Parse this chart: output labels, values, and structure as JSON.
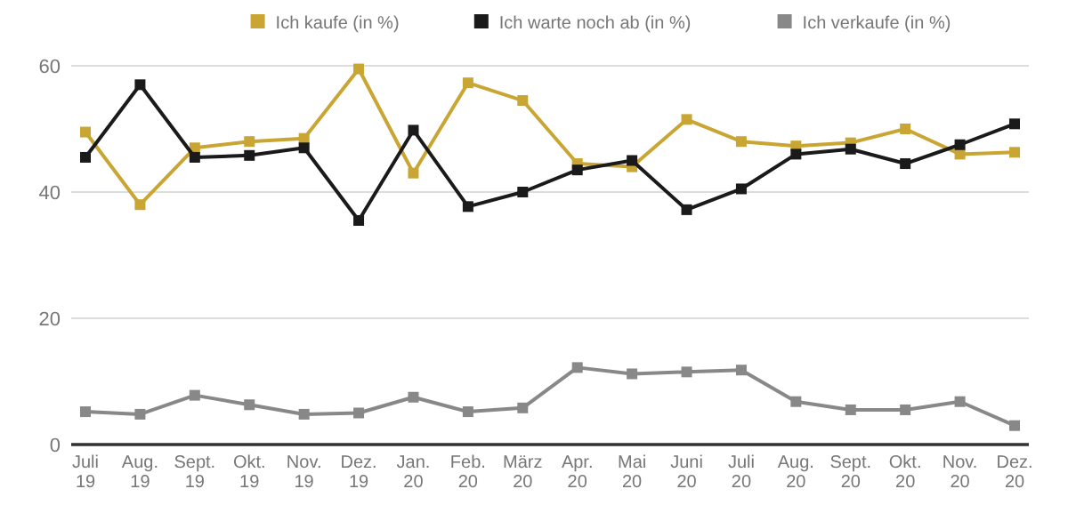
{
  "chart_data": {
    "type": "line",
    "categories": [
      "Juli 19",
      "Aug. 19",
      "Sept. 19",
      "Okt. 19",
      "Nov. 19",
      "Dez. 19",
      "Jan. 20",
      "Feb. 20",
      "März 20",
      "Apr. 20",
      "Mai 20",
      "Juni 20",
      "Juli 20",
      "Aug. 20",
      "Sept. 20",
      "Okt. 20",
      "Nov. 20",
      "Dez. 20"
    ],
    "series": [
      {
        "name": "Ich kaufe (in %)",
        "color": "#c9a634",
        "values": [
          49.5,
          38,
          47,
          48,
          48.5,
          59.5,
          43,
          57.3,
          54.5,
          44.5,
          44,
          51.5,
          48,
          47.3,
          47.8,
          50,
          46,
          46.3
        ]
      },
      {
        "name": "Ich warte noch ab (in %)",
        "color": "#1a1a1a",
        "values": [
          45.5,
          57,
          45.5,
          45.8,
          47,
          35.5,
          49.8,
          37.7,
          40,
          43.5,
          45,
          37.2,
          40.5,
          46,
          46.8,
          44.5,
          47.5,
          50.8
        ]
      },
      {
        "name": "Ich verkaufe (in %)",
        "color": "#888888",
        "values": [
          5.2,
          4.8,
          7.8,
          6.3,
          4.8,
          5,
          7.5,
          5.2,
          5.8,
          12.2,
          11.2,
          11.5,
          11.8,
          6.8,
          5.5,
          5.5,
          6.8,
          3.0
        ]
      }
    ],
    "ylim": [
      0,
      60
    ],
    "yticks": [
      0,
      20,
      40,
      60
    ],
    "grid": "y",
    "legend": "top",
    "marker": "square",
    "line_style": "solid"
  }
}
